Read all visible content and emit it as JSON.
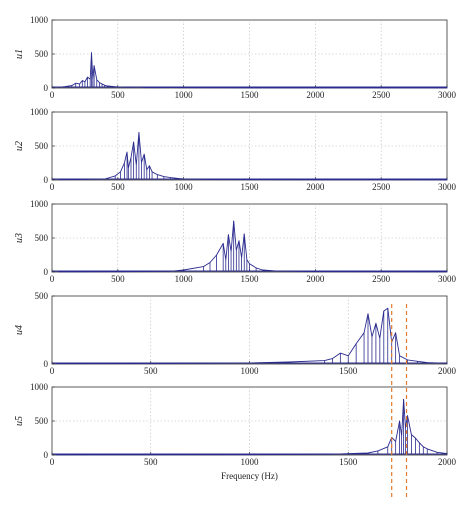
{
  "chart_data": [
    {
      "type": "line",
      "ylabel": "u1",
      "xlim": [
        0,
        3000
      ],
      "ylim": [
        0,
        1000
      ],
      "xticks": [
        "0",
        "500",
        "1000",
        "1500",
        "2000",
        "2500",
        "3000"
      ],
      "yticks": [
        "0",
        "500",
        "1000"
      ],
      "grid": true,
      "color": "#2b2b8f",
      "x": [
        50,
        100,
        150,
        180,
        210,
        230,
        250,
        270,
        290,
        300,
        310,
        320,
        340,
        360,
        380,
        400,
        420,
        450,
        500,
        550,
        600,
        650,
        700,
        800,
        900,
        1000,
        1200,
        1500,
        2000,
        2500,
        3000
      ],
      "y": [
        10,
        20,
        35,
        70,
        60,
        110,
        90,
        160,
        130,
        520,
        140,
        330,
        120,
        80,
        60,
        40,
        30,
        25,
        15,
        12,
        10,
        15,
        8,
        5,
        6,
        4,
        3,
        2,
        2,
        2,
        2
      ]
    },
    {
      "type": "line",
      "ylabel": "u2",
      "xlim": [
        0,
        3000
      ],
      "ylim": [
        0,
        1000
      ],
      "xticks": [
        "0",
        "500",
        "1000",
        "1500",
        "2000",
        "2500",
        "3000"
      ],
      "yticks": [
        "0",
        "500",
        "1000"
      ],
      "grid": true,
      "color": "#2b2b8f",
      "x": [
        50,
        200,
        400,
        480,
        520,
        550,
        570,
        580,
        600,
        620,
        640,
        660,
        680,
        700,
        720,
        740,
        760,
        800,
        850,
        900,
        950,
        1000,
        1200,
        1500,
        2000,
        2500,
        3000
      ],
      "y": [
        5,
        8,
        15,
        60,
        120,
        250,
        410,
        180,
        330,
        560,
        220,
        700,
        260,
        380,
        150,
        210,
        120,
        80,
        50,
        35,
        25,
        15,
        8,
        5,
        3,
        3,
        2
      ]
    },
    {
      "type": "line",
      "ylabel": "u3",
      "xlim": [
        0,
        3000
      ],
      "ylim": [
        0,
        1000
      ],
      "xticks": [
        "0",
        "500",
        "1000",
        "1500",
        "2000",
        "2500",
        "3000"
      ],
      "yticks": [
        "0",
        "500",
        "1000"
      ],
      "grid": true,
      "color": "#2b2b8f",
      "x": [
        50,
        500,
        900,
        1000,
        1150,
        1200,
        1250,
        1300,
        1320,
        1340,
        1360,
        1380,
        1400,
        1420,
        1440,
        1460,
        1480,
        1500,
        1550,
        1600,
        1700,
        2000,
        2500,
        3000
      ],
      "y": [
        2,
        3,
        10,
        30,
        80,
        140,
        250,
        420,
        180,
        550,
        300,
        750,
        320,
        460,
        210,
        560,
        180,
        120,
        60,
        30,
        15,
        5,
        3,
        2
      ]
    },
    {
      "type": "line",
      "ylabel": "u4",
      "xlim": [
        0,
        2000
      ],
      "ylim": [
        0,
        500
      ],
      "xticks": [
        "0",
        "500",
        "1000",
        "1500",
        "2000"
      ],
      "yticks": [
        "0",
        "500"
      ],
      "grid": true,
      "color": "#2b2b8f",
      "x": [
        20,
        400,
        800,
        1000,
        1200,
        1380,
        1420,
        1460,
        1500,
        1540,
        1580,
        1600,
        1620,
        1640,
        1660,
        1680,
        1700,
        1720,
        1740,
        1760,
        1800,
        1850,
        1900,
        2000
      ],
      "y": [
        2,
        3,
        5,
        8,
        15,
        25,
        40,
        80,
        60,
        150,
        230,
        370,
        200,
        300,
        190,
        390,
        410,
        160,
        230,
        60,
        30,
        20,
        10,
        5
      ]
    },
    {
      "type": "line",
      "ylabel": "u5",
      "xlim": [
        0,
        2000
      ],
      "ylim": [
        0,
        1000
      ],
      "xticks": [
        "0",
        "500",
        "1000",
        "1500",
        "2000"
      ],
      "yticks": [
        "0",
        "500",
        "1000"
      ],
      "grid": true,
      "color": "#2b2b8f",
      "xlabel": "Frequency (Hz)",
      "x": [
        20,
        500,
        1000,
        1400,
        1600,
        1650,
        1700,
        1720,
        1740,
        1760,
        1770,
        1780,
        1790,
        1800,
        1820,
        1840,
        1860,
        1880,
        1900,
        1950,
        2000
      ],
      "y": [
        2,
        3,
        5,
        10,
        30,
        60,
        120,
        260,
        200,
        500,
        280,
        820,
        400,
        580,
        300,
        250,
        180,
        120,
        90,
        40,
        20
      ]
    }
  ],
  "markers": {
    "color": "#e07a2e",
    "lines_x": [
      1720,
      1795
    ]
  }
}
